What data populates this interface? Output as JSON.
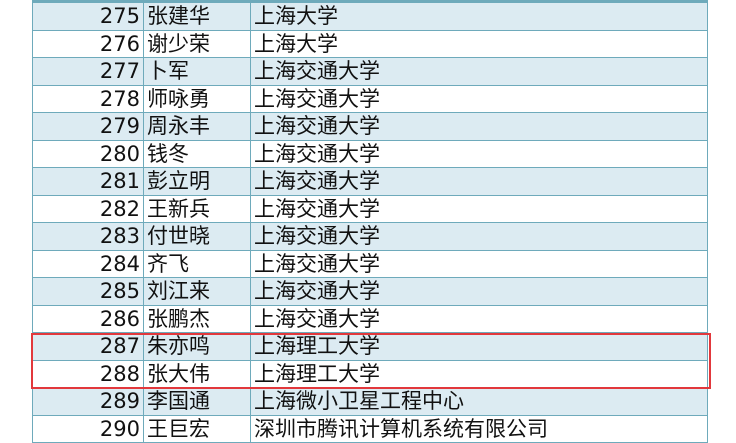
{
  "rows": [
    {
      "no": "275",
      "name": "张建华",
      "unit": "上海大学"
    },
    {
      "no": "276",
      "name": "谢少荣",
      "unit": "上海大学"
    },
    {
      "no": "277",
      "name": "卜军",
      "unit": "上海交通大学"
    },
    {
      "no": "278",
      "name": "师咏勇",
      "unit": "上海交通大学"
    },
    {
      "no": "279",
      "name": "周永丰",
      "unit": "上海交通大学"
    },
    {
      "no": "280",
      "name": "钱冬",
      "unit": "上海交通大学"
    },
    {
      "no": "281",
      "name": "彭立明",
      "unit": "上海交通大学"
    },
    {
      "no": "282",
      "name": "王新兵",
      "unit": "上海交通大学"
    },
    {
      "no": "283",
      "name": "付世晓",
      "unit": "上海交通大学"
    },
    {
      "no": "284",
      "name": "齐飞",
      "unit": "上海交通大学"
    },
    {
      "no": "285",
      "name": "刘江来",
      "unit": "上海交通大学"
    },
    {
      "no": "286",
      "name": "张鹏杰",
      "unit": "上海交通大学"
    },
    {
      "no": "287",
      "name": "朱亦鸣",
      "unit": "上海理工大学"
    },
    {
      "no": "288",
      "name": "张大伟",
      "unit": "上海理工大学"
    },
    {
      "no": "289",
      "name": "李国通",
      "unit": "上海微小卫星工程中心"
    },
    {
      "no": "290",
      "name": "王巨宏",
      "unit": "深圳市腾讯计算机系统有限公司"
    }
  ],
  "highlighted_rows": [
    "287",
    "288"
  ],
  "colors": {
    "row_alt": "#dcebf2",
    "border": "#6eaabb",
    "highlight": "#e2383c"
  }
}
